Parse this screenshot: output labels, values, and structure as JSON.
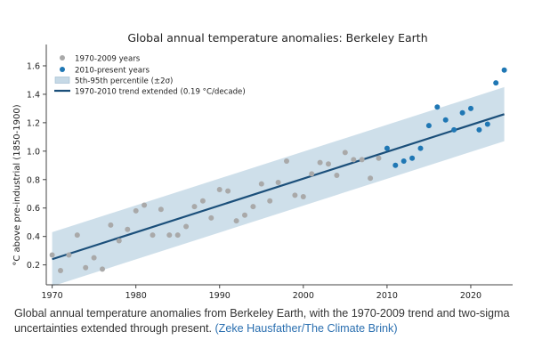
{
  "chart_data": {
    "type": "scatter",
    "title": "Global annual temperature anomalies: Berkeley Earth",
    "xlabel": "",
    "ylabel": "°C above pre-industrial (1850-1900)",
    "xlim": [
      1969.3,
      2025
    ],
    "ylim": [
      0.06,
      1.7
    ],
    "xticks": [
      1970,
      1980,
      1990,
      2000,
      2010,
      2020
    ],
    "yticks": [
      0.2,
      0.4,
      0.6,
      0.8,
      1.0,
      1.2,
      1.4,
      1.6
    ],
    "ytick_labels": [
      "0.2",
      "0.4",
      "0.6",
      "0.8",
      "1.0",
      "1.2",
      "1.4",
      "1.6"
    ],
    "colors": {
      "historical": "#a9a9a9",
      "recent": "#1f77b4",
      "band": "#c6d9e6",
      "trend": "#1b4f7a"
    },
    "legend": {
      "position": "top-left",
      "entries": [
        "1970-2009 years",
        "2010-present years",
        "5th-95th percentile (±2σ)",
        "1970-2010 trend extended (0.19 °C/decade)"
      ]
    },
    "trend": {
      "x": [
        1970,
        2024
      ],
      "y": [
        0.24,
        1.26
      ],
      "band_halfwidth": 0.19
    },
    "series": [
      {
        "name": "1970-2009 years",
        "x": [
          1970,
          1971,
          1972,
          1973,
          1974,
          1975,
          1976,
          1977,
          1978,
          1979,
          1980,
          1981,
          1982,
          1983,
          1984,
          1985,
          1986,
          1987,
          1988,
          1989,
          1990,
          1991,
          1992,
          1993,
          1994,
          1995,
          1996,
          1997,
          1998,
          1999,
          2000,
          2001,
          2002,
          2003,
          2004,
          2005,
          2006,
          2007,
          2008,
          2009
        ],
        "y": [
          0.27,
          0.16,
          0.27,
          0.41,
          0.18,
          0.25,
          0.17,
          0.48,
          0.37,
          0.45,
          0.58,
          0.62,
          0.41,
          0.59,
          0.41,
          0.41,
          0.47,
          0.61,
          0.65,
          0.53,
          0.73,
          0.72,
          0.51,
          0.55,
          0.61,
          0.77,
          0.65,
          0.78,
          0.93,
          0.69,
          0.68,
          0.84,
          0.92,
          0.91,
          0.83,
          0.99,
          0.94,
          0.94,
          0.81,
          0.95
        ]
      },
      {
        "name": "2010-present years",
        "x": [
          2010,
          2011,
          2012,
          2013,
          2014,
          2015,
          2016,
          2017,
          2018,
          2019,
          2020,
          2021,
          2022,
          2023,
          2024
        ],
        "y": [
          1.02,
          0.9,
          0.93,
          0.95,
          1.02,
          1.18,
          1.31,
          1.22,
          1.15,
          1.27,
          1.3,
          1.15,
          1.19,
          1.48,
          1.57
        ]
      }
    ]
  },
  "caption": {
    "text": "Global annual temperature anomalies from Berkeley Earth, with the 1970-2009 trend and two-sigma uncertainties extended through present. ",
    "credit": "(Zeke Hausfather/The Climate Brink)"
  }
}
